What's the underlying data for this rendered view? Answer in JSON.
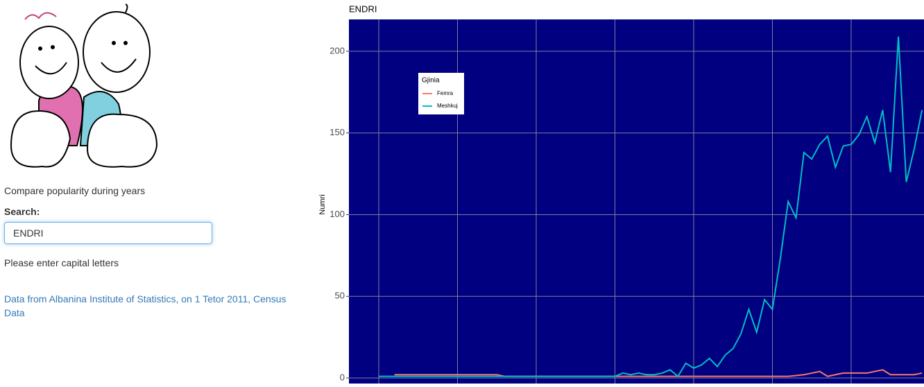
{
  "sidebar": {
    "intro": "Compare popularity during years",
    "search_label": "Search:",
    "search_value": "ENDRI",
    "hint": "Please enter capital letters",
    "source_link": "Data from Albanina Institute of Statistics, on 1 Tetor 2011, Census Data"
  },
  "chart_data": {
    "type": "line",
    "title": "ENDRI",
    "y_label": "Numri",
    "legend_title": "Gjinia",
    "legend_position": "top-left",
    "grid": true,
    "ylim": [
      -3.4,
      219.5
    ],
    "yticks": [
      0,
      50,
      100,
      150,
      200
    ],
    "series": [
      {
        "name": "Femra",
        "color": "#F8766D",
        "values": [
          null,
          null,
          2,
          2,
          2,
          2,
          2,
          2,
          2,
          2,
          2,
          2,
          2,
          2,
          2,
          2,
          1,
          1,
          1,
          1,
          1,
          1,
          1,
          1,
          1,
          1,
          1,
          1,
          1,
          1,
          1,
          1,
          1,
          1,
          1,
          1,
          1,
          1,
          1,
          1,
          1,
          1,
          1,
          1,
          1,
          1,
          1,
          1,
          1,
          1,
          1,
          1,
          1,
          1.5,
          2,
          3,
          4,
          1,
          2,
          3,
          3,
          3,
          3,
          4,
          5,
          2,
          2,
          2,
          2,
          3
        ]
      },
      {
        "name": "Meshkuj",
        "color": "#00BFC4",
        "values": [
          1,
          1,
          1,
          1,
          1,
          1,
          1,
          1,
          1,
          1,
          1,
          1,
          1,
          1,
          1,
          1,
          1,
          1,
          1,
          1,
          1,
          1,
          1,
          1,
          1,
          1,
          1,
          1,
          1,
          1,
          1,
          3,
          2,
          3,
          2,
          2,
          3,
          5,
          1,
          9,
          6,
          8,
          12,
          7,
          14,
          18,
          27,
          42,
          28,
          48,
          42,
          73,
          108,
          98,
          138,
          134,
          143,
          148,
          129,
          142,
          143,
          149,
          160,
          144,
          164,
          126,
          209,
          120,
          140,
          164
        ]
      }
    ]
  }
}
